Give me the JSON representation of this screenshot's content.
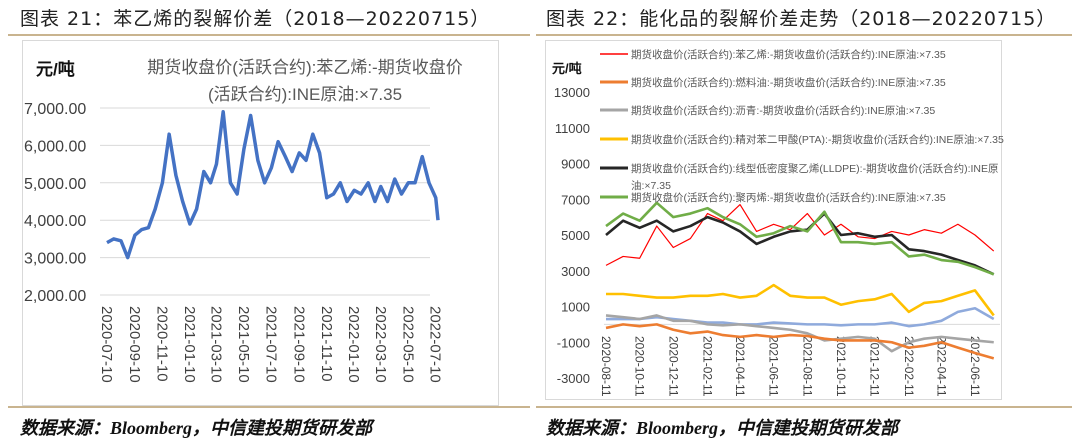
{
  "left": {
    "title": "图表 21：苯乙烯的裂解价差（2018—20220715）",
    "source": "数据来源：Bloomberg，中信建投期货研发部"
  },
  "right": {
    "title": "图表 22：能化品的裂解价差走势（2018—20220715）",
    "source": "数据来源：Bloomberg，中信建投期货研发部"
  },
  "chart_data": [
    {
      "type": "line",
      "title": "期货收盘价(活跃合约):苯乙烯:-期货收盘价(活跃合约):INE原油:×7.35",
      "title_lines": [
        "期货收盘价(活跃合约):苯乙烯:-期货收盘价",
        "(活跃合约):INE原油:×7.35"
      ],
      "ylabel": "元/吨",
      "ylim": [
        2000,
        7000
      ],
      "yticks": [
        "2,000.00",
        "3,000.00",
        "4,000.00",
        "5,000.00",
        "6,000.00",
        "7,000.00"
      ],
      "ytick_values": [
        2000,
        3000,
        4000,
        5000,
        6000,
        7000
      ],
      "xlim": [
        "2020-07-10",
        "2022-07-15"
      ],
      "xticks": [
        "2020-07-10",
        "2020-09-10",
        "2020-11-10",
        "2021-01-10",
        "2021-03-10",
        "2021-05-10",
        "2021-07-10",
        "2021-09-10",
        "2021-11-10",
        "2022-01-10",
        "2022-03-10",
        "2022-05-10",
        "2022-07-10"
      ],
      "grid": "horizontal",
      "color": "#4472c4",
      "x": [
        "2020-07-10",
        "2020-07-25",
        "2020-08-10",
        "2020-08-25",
        "2020-09-10",
        "2020-09-25",
        "2020-10-10",
        "2020-10-25",
        "2020-11-10",
        "2020-11-25",
        "2020-12-10",
        "2020-12-25",
        "2021-01-10",
        "2021-01-25",
        "2021-02-10",
        "2021-02-25",
        "2021-03-10",
        "2021-03-25",
        "2021-04-10",
        "2021-04-25",
        "2021-05-10",
        "2021-05-25",
        "2021-06-10",
        "2021-06-25",
        "2021-07-10",
        "2021-07-25",
        "2021-08-10",
        "2021-08-25",
        "2021-09-10",
        "2021-09-25",
        "2021-10-10",
        "2021-10-25",
        "2021-11-10",
        "2021-11-25",
        "2021-12-10",
        "2021-12-25",
        "2022-01-10",
        "2022-01-25",
        "2022-02-10",
        "2022-02-25",
        "2022-03-10",
        "2022-03-25",
        "2022-04-10",
        "2022-04-25",
        "2022-05-10",
        "2022-05-25",
        "2022-06-10",
        "2022-06-25",
        "2022-07-10",
        "2022-07-15"
      ],
      "values": [
        3400,
        3500,
        3450,
        3000,
        3600,
        3750,
        3800,
        4300,
        5000,
        6300,
        5200,
        4500,
        3900,
        4300,
        5300,
        5000,
        5500,
        6900,
        5000,
        4700,
        5900,
        6800,
        5600,
        5000,
        5400,
        6100,
        5700,
        5300,
        5800,
        5600,
        6300,
        5800,
        4600,
        4700,
        5000,
        4500,
        4800,
        4700,
        5000,
        4500,
        4900,
        4500,
        5100,
        4700,
        5000,
        5000,
        5700,
        5000,
        4600,
        4000
      ]
    },
    {
      "type": "line",
      "ylabel": "元/吨",
      "ylim": [
        -3000,
        13000
      ],
      "yticks": [
        "-3000",
        "-1000",
        "1000",
        "3000",
        "5000",
        "7000",
        "9000",
        "11000",
        "13000"
      ],
      "ytick_values": [
        -3000,
        -1000,
        1000,
        3000,
        5000,
        7000,
        9000,
        11000,
        13000
      ],
      "xlim": [
        "2020-08-11",
        "2022-07-15"
      ],
      "xticks": [
        "2020-08-11",
        "2020-10-11",
        "2020-12-11",
        "2021-02-11",
        "2021-04-11",
        "2021-06-11",
        "2021-08-11",
        "2021-10-11",
        "2021-12-11",
        "2022-02-11",
        "2022-04-11",
        "2022-06-11"
      ],
      "legend": "top",
      "x": [
        "2020-08-11",
        "2020-09-11",
        "2020-10-11",
        "2020-11-11",
        "2020-12-11",
        "2021-01-11",
        "2021-02-11",
        "2021-03-11",
        "2021-04-11",
        "2021-05-11",
        "2021-06-11",
        "2021-07-11",
        "2021-08-11",
        "2021-09-11",
        "2021-10-11",
        "2021-11-11",
        "2021-12-11",
        "2022-01-11",
        "2022-02-11",
        "2022-03-11",
        "2022-04-11",
        "2022-05-11",
        "2022-06-11",
        "2022-07-15"
      ],
      "series": [
        {
          "name": "期货收盘价(活跃合约):苯乙烯:-期货收盘价(活跃合约):INE原油:×7.35",
          "color": "#ff0000",
          "values": [
            3300,
            3800,
            3700,
            5500,
            4300,
            4800,
            6200,
            5800,
            6700,
            5200,
            5600,
            5300,
            6200,
            5000,
            5600,
            4900,
            4800,
            5200,
            5000,
            5300,
            5100,
            5600,
            5000,
            4100
          ]
        },
        {
          "name": "期货收盘价(活跃合约):燃料油:-期货收盘价(活跃合约):INE原油:×7.35",
          "color": "#ed7d31",
          "values": [
            -200,
            0,
            -100,
            0,
            -300,
            -500,
            -400,
            -600,
            -700,
            -600,
            -700,
            -600,
            -650,
            -800,
            -900,
            -900,
            -900,
            -1000,
            -1300,
            -1200,
            -1000,
            -1300,
            -1600,
            -1900
          ]
        },
        {
          "name": "期货收盘价(活跃合约):沥青:-期货收盘价(活跃合约):INE原油:×7.35",
          "color": "#a5a5a5",
          "values": [
            500,
            400,
            300,
            500,
            200,
            200,
            0,
            -50,
            0,
            -100,
            -200,
            -300,
            -500,
            -900,
            -800,
            -700,
            -800,
            -1500,
            -1000,
            -800,
            -700,
            -800,
            -900,
            -1000
          ]
        },
        {
          "name": "期货收盘价(活跃合约):精对苯二甲酸(PTA):-期货收盘价(活跃合约):INE原油:×7.35",
          "color": "#ffc000",
          "values": [
            1700,
            1700,
            1600,
            1500,
            1500,
            1600,
            1600,
            1700,
            1500,
            1600,
            2200,
            1600,
            1500,
            1500,
            1100,
            1300,
            1400,
            1700,
            700,
            1200,
            1300,
            1600,
            1900,
            500
          ]
        },
        {
          "name": "期货收盘价(活跃合约):线型低密度聚乙烯(LLDPE):-期货收盘价(活跃合约):INE原油:×7.35",
          "name_lines": [
            "期货收盘价(活跃合约):线型低密度聚乙烯(LLDPE):-期货收盘价(活跃合约):INE原",
            "油:×7.35"
          ],
          "color": "#262626",
          "values": [
            5000,
            5800,
            5400,
            5800,
            5200,
            5500,
            6000,
            5700,
            5200,
            4500,
            4900,
            5200,
            5300,
            6200,
            5000,
            5100,
            4900,
            5000,
            4200,
            4100,
            3900,
            3600,
            3300,
            2800
          ]
        },
        {
          "name": "期货收盘价(活跃合约):聚丙烯:-期货收盘价(活跃合约):INE原油:×7.35",
          "color": "#70ad47",
          "values": [
            5500,
            6200,
            5800,
            6800,
            6000,
            6200,
            6500,
            6000,
            5600,
            4900,
            5100,
            5500,
            5200,
            6300,
            4600,
            4600,
            4500,
            4600,
            3800,
            3900,
            3600,
            3500,
            3200,
            2800
          ]
        },
        {
          "color": "#8faadc",
          "values": [
            300,
            300,
            300,
            400,
            300,
            200,
            100,
            100,
            0,
            0,
            100,
            50,
            0,
            0,
            -50,
            0,
            0,
            100,
            -100,
            0,
            200,
            700,
            900,
            300
          ]
        }
      ]
    }
  ]
}
